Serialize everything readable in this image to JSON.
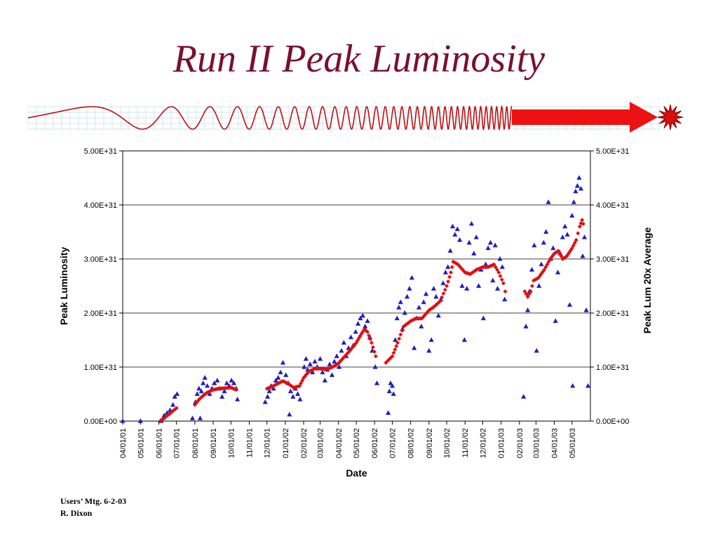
{
  "slide": {
    "title": "Run II Peak Luminosity"
  },
  "footer": {
    "line1": "Users’ Mtg.  6-2-03",
    "line2": "R. Dixon"
  },
  "colors": {
    "title": "#7a1030",
    "peak_series": "#1f1fc0",
    "average_series": "#e01010",
    "banner_wave": "#c01010",
    "banner_arrow": "#ee1111"
  },
  "banner": {
    "decoration": "sine-wave-to-arrow-and-starburst"
  },
  "chart_data": {
    "type": "scatter",
    "xlabel": "Date",
    "ylabel": "Peak Luminosity",
    "y2label": "Peak Lum 20x Average",
    "ylim": [
      0,
      5e+31
    ],
    "yticks": [
      "0.00E+00",
      "1.00E+31",
      "2.00E+31",
      "3.00E+31",
      "4.00E+31",
      "5.00E+31"
    ],
    "y2ticks": [
      "0.00E+00",
      "1.00E+31",
      "2.00E+31",
      "3.00E+31",
      "4.00E+31",
      "5.00E+31"
    ],
    "xlim": [
      "2001-04-01",
      "2003-06-01"
    ],
    "xtick_labels": [
      "04/01/01",
      "05/01/01",
      "06/01/01",
      "07/01/01",
      "08/01/01",
      "09/01/01",
      "10/01/01",
      "11/01/01",
      "12/01/01",
      "01/01/02",
      "02/01/02",
      "03/01/02",
      "04/01/02",
      "05/01/02",
      "06/01/02",
      "07/01/02",
      "08/01/02",
      "09/01/02",
      "10/01/02",
      "11/01/02",
      "12/01/02",
      "01/01/03",
      "02/01/03",
      "03/01/03",
      "04/01/03",
      "05/01/03"
    ],
    "grid": "horizontal",
    "legend": "none",
    "series": [
      {
        "marker": "triangle",
        "axis": "left",
        "points": [
          [
            "2001-04-01",
            0.0
          ],
          [
            "2001-05-01",
            0.0
          ],
          [
            "2001-06-05",
            0.0
          ],
          [
            "2001-06-10",
            0.1
          ],
          [
            "2001-06-15",
            0.15
          ],
          [
            "2001-06-20",
            0.2
          ],
          [
            "2001-06-25",
            0.3
          ],
          [
            "2001-06-28",
            0.45
          ],
          [
            "2001-07-02",
            0.5
          ],
          [
            "2001-07-28",
            0.05
          ],
          [
            "2001-08-02",
            0.35
          ],
          [
            "2001-08-05",
            0.5
          ],
          [
            "2001-08-08",
            0.6
          ],
          [
            "2001-08-12",
            0.55
          ],
          [
            "2001-08-15",
            0.7
          ],
          [
            "2001-08-18",
            0.8
          ],
          [
            "2001-08-22",
            0.65
          ],
          [
            "2001-08-26",
            0.5
          ],
          [
            "2001-08-30",
            0.6
          ],
          [
            "2001-09-03",
            0.7
          ],
          [
            "2001-09-08",
            0.75
          ],
          [
            "2001-09-12",
            0.6
          ],
          [
            "2001-09-16",
            0.45
          ],
          [
            "2001-09-20",
            0.55
          ],
          [
            "2001-09-24",
            0.7
          ],
          [
            "2001-09-28",
            0.65
          ],
          [
            "2001-10-02",
            0.75
          ],
          [
            "2001-10-06",
            0.7
          ],
          [
            "2001-10-10",
            0.6
          ],
          [
            "2001-10-12",
            0.4
          ],
          [
            "2001-08-10",
            0.05
          ],
          [
            "2001-11-28",
            0.35
          ],
          [
            "2001-12-02",
            0.45
          ],
          [
            "2001-12-05",
            0.55
          ],
          [
            "2001-12-08",
            0.65
          ],
          [
            "2001-12-12",
            0.6
          ],
          [
            "2001-12-16",
            0.75
          ],
          [
            "2001-12-20",
            0.8
          ],
          [
            "2001-12-24",
            0.9
          ],
          [
            "2001-12-28",
            1.08
          ],
          [
            "2002-01-02",
            0.85
          ],
          [
            "2002-01-06",
            0.7
          ],
          [
            "2002-01-10",
            0.55
          ],
          [
            "2002-01-14",
            0.45
          ],
          [
            "2002-01-18",
            0.6
          ],
          [
            "2002-01-22",
            0.5
          ],
          [
            "2002-01-26",
            0.4
          ],
          [
            "2002-01-08",
            0.12
          ],
          [
            "2002-02-02",
            1.0
          ],
          [
            "2002-02-05",
            1.15
          ],
          [
            "2002-02-08",
            0.95
          ],
          [
            "2002-02-12",
            1.05
          ],
          [
            "2002-02-16",
            0.9
          ],
          [
            "2002-02-20",
            1.1
          ],
          [
            "2002-02-24",
            1.0
          ],
          [
            "2002-03-01",
            1.15
          ],
          [
            "2002-03-05",
            0.9
          ],
          [
            "2002-03-09",
            0.75
          ],
          [
            "2002-03-13",
            0.95
          ],
          [
            "2002-03-17",
            1.05
          ],
          [
            "2002-03-21",
            0.85
          ],
          [
            "2002-03-25",
            1.1
          ],
          [
            "2002-03-29",
            1.2
          ],
          [
            "2002-04-02",
            1.0
          ],
          [
            "2002-04-06",
            1.3
          ],
          [
            "2002-04-10",
            1.45
          ],
          [
            "2002-04-14",
            1.2
          ],
          [
            "2002-04-18",
            1.35
          ],
          [
            "2002-04-22",
            1.55
          ],
          [
            "2002-04-26",
            1.4
          ],
          [
            "2002-04-30",
            1.65
          ],
          [
            "2002-05-04",
            1.8
          ],
          [
            "2002-05-08",
            1.9
          ],
          [
            "2002-05-12",
            1.95
          ],
          [
            "2002-05-16",
            1.75
          ],
          [
            "2002-05-20",
            1.85
          ],
          [
            "2002-05-24",
            1.55
          ],
          [
            "2002-05-28",
            1.3
          ],
          [
            "2002-06-02",
            1.0
          ],
          [
            "2002-06-05",
            0.7
          ],
          [
            "2002-06-24",
            0.15
          ],
          [
            "2002-06-26",
            0.55
          ],
          [
            "2002-06-28",
            0.7
          ],
          [
            "2002-07-01",
            0.65
          ],
          [
            "2002-07-03",
            0.5
          ],
          [
            "2002-07-06",
            1.5
          ],
          [
            "2002-07-09",
            1.9
          ],
          [
            "2002-07-12",
            2.1
          ],
          [
            "2002-07-15",
            2.2
          ],
          [
            "2002-07-18",
            1.7
          ],
          [
            "2002-07-22",
            2.0
          ],
          [
            "2002-07-26",
            2.3
          ],
          [
            "2002-07-30",
            2.45
          ],
          [
            "2002-08-03",
            2.65
          ],
          [
            "2002-08-07",
            1.35
          ],
          [
            "2002-08-11",
            1.9
          ],
          [
            "2002-08-15",
            2.1
          ],
          [
            "2002-08-19",
            1.75
          ],
          [
            "2002-08-23",
            2.2
          ],
          [
            "2002-08-27",
            2.35
          ],
          [
            "2002-09-01",
            1.3
          ],
          [
            "2002-09-05",
            1.5
          ],
          [
            "2002-09-09",
            2.45
          ],
          [
            "2002-09-13",
            2.3
          ],
          [
            "2002-09-17",
            1.95
          ],
          [
            "2002-09-21",
            2.25
          ],
          [
            "2002-09-25",
            2.55
          ],
          [
            "2002-09-29",
            2.75
          ],
          [
            "2002-10-03",
            2.85
          ],
          [
            "2002-10-07",
            3.15
          ],
          [
            "2002-10-11",
            3.6
          ],
          [
            "2002-10-15",
            3.45
          ],
          [
            "2002-10-19",
            3.55
          ],
          [
            "2002-10-23",
            3.35
          ],
          [
            "2002-10-27",
            2.5
          ],
          [
            "2002-10-31",
            1.5
          ],
          [
            "2002-11-04",
            2.45
          ],
          [
            "2002-11-08",
            3.3
          ],
          [
            "2002-11-12",
            3.65
          ],
          [
            "2002-11-16",
            3.1
          ],
          [
            "2002-11-20",
            3.4
          ],
          [
            "2002-11-24",
            2.5
          ],
          [
            "2002-11-28",
            2.8
          ],
          [
            "2002-12-02",
            1.9
          ],
          [
            "2002-12-06",
            2.9
          ],
          [
            "2002-12-10",
            3.2
          ],
          [
            "2002-12-14",
            3.3
          ],
          [
            "2002-12-18",
            2.6
          ],
          [
            "2002-12-22",
            3.25
          ],
          [
            "2002-12-26",
            2.45
          ],
          [
            "2002-12-30",
            3.0
          ],
          [
            "2003-01-03",
            2.85
          ],
          [
            "2003-01-07",
            2.25
          ],
          [
            "2003-02-08",
            0.45
          ],
          [
            "2003-02-12",
            1.75
          ],
          [
            "2003-02-15",
            2.05
          ],
          [
            "2003-02-18",
            2.4
          ],
          [
            "2003-02-22",
            2.8
          ],
          [
            "2003-02-26",
            3.25
          ],
          [
            "2003-03-02",
            1.3
          ],
          [
            "2003-03-06",
            2.5
          ],
          [
            "2003-03-10",
            2.9
          ],
          [
            "2003-03-14",
            3.3
          ],
          [
            "2003-03-18",
            3.5
          ],
          [
            "2003-03-22",
            4.05
          ],
          [
            "2003-03-26",
            3.0
          ],
          [
            "2003-03-30",
            3.2
          ],
          [
            "2003-04-03",
            1.85
          ],
          [
            "2003-04-07",
            2.75
          ],
          [
            "2003-04-11",
            3.1
          ],
          [
            "2003-04-15",
            3.4
          ],
          [
            "2003-04-19",
            3.6
          ],
          [
            "2003-04-23",
            3.45
          ],
          [
            "2003-04-27",
            2.15
          ],
          [
            "2003-05-01",
            3.8
          ],
          [
            "2003-05-04",
            4.05
          ],
          [
            "2003-05-07",
            4.25
          ],
          [
            "2003-05-10",
            4.35
          ],
          [
            "2003-05-13",
            4.5
          ],
          [
            "2003-05-16",
            4.3
          ],
          [
            "2003-05-19",
            3.05
          ],
          [
            "2003-05-22",
            3.4
          ],
          [
            "2003-05-25",
            2.05
          ],
          [
            "2003-05-28",
            0.65
          ],
          [
            "2003-05-02",
            0.65
          ]
        ]
      },
      {
        "marker": "diamond",
        "axis": "right",
        "points": [
          [
            "2001-06-05",
            0.02
          ],
          [
            "2001-06-10",
            0.05
          ],
          [
            "2001-06-15",
            0.1
          ],
          [
            "2001-06-20",
            0.14
          ],
          [
            "2001-06-25",
            0.19
          ],
          [
            "2001-07-01",
            0.24
          ],
          [
            "2001-08-01",
            0.3
          ],
          [
            "2001-08-08",
            0.4
          ],
          [
            "2001-08-15",
            0.47
          ],
          [
            "2001-08-22",
            0.53
          ],
          [
            "2001-09-01",
            0.58
          ],
          [
            "2001-09-10",
            0.6
          ],
          [
            "2001-09-20",
            0.61
          ],
          [
            "2001-10-01",
            0.62
          ],
          [
            "2001-10-10",
            0.58
          ],
          [
            "2001-12-01",
            0.6
          ],
          [
            "2001-12-10",
            0.64
          ],
          [
            "2001-12-20",
            0.7
          ],
          [
            "2001-12-28",
            0.74
          ],
          [
            "2002-01-05",
            0.7
          ],
          [
            "2002-01-15",
            0.62
          ],
          [
            "2002-01-25",
            0.65
          ],
          [
            "2002-02-01",
            0.8
          ],
          [
            "2002-02-10",
            0.92
          ],
          [
            "2002-02-20",
            0.97
          ],
          [
            "2002-03-01",
            0.97
          ],
          [
            "2002-03-10",
            0.96
          ],
          [
            "2002-03-20",
            0.99
          ],
          [
            "2002-04-01",
            1.07
          ],
          [
            "2002-04-10",
            1.18
          ],
          [
            "2002-04-20",
            1.3
          ],
          [
            "2002-05-01",
            1.45
          ],
          [
            "2002-05-10",
            1.62
          ],
          [
            "2002-05-15",
            1.7
          ],
          [
            "2002-05-20",
            1.65
          ],
          [
            "2002-05-27",
            1.45
          ],
          [
            "2002-06-03",
            1.2
          ],
          [
            "2002-06-20",
            1.08
          ],
          [
            "2002-07-01",
            1.2
          ],
          [
            "2002-07-10",
            1.45
          ],
          [
            "2002-07-20",
            1.75
          ],
          [
            "2002-08-01",
            1.85
          ],
          [
            "2002-08-10",
            1.9
          ],
          [
            "2002-08-20",
            1.9
          ],
          [
            "2002-09-01",
            2.05
          ],
          [
            "2002-09-10",
            2.12
          ],
          [
            "2002-09-20",
            2.22
          ],
          [
            "2002-10-01",
            2.5
          ],
          [
            "2002-10-08",
            2.75
          ],
          [
            "2002-10-12",
            2.95
          ],
          [
            "2002-10-20",
            2.9
          ],
          [
            "2002-11-01",
            2.75
          ],
          [
            "2002-11-10",
            2.72
          ],
          [
            "2002-11-20",
            2.8
          ],
          [
            "2002-12-01",
            2.85
          ],
          [
            "2002-12-10",
            2.85
          ],
          [
            "2002-12-20",
            2.9
          ],
          [
            "2002-12-28",
            2.75
          ],
          [
            "2003-01-05",
            2.55
          ],
          [
            "2003-01-08",
            2.4
          ],
          [
            "2003-02-10",
            2.4
          ],
          [
            "2003-02-15",
            2.3
          ],
          [
            "2003-02-20",
            2.4
          ],
          [
            "2003-02-25",
            2.6
          ],
          [
            "2003-03-05",
            2.65
          ],
          [
            "2003-03-15",
            2.8
          ],
          [
            "2003-03-25",
            3.0
          ],
          [
            "2003-04-01",
            3.1
          ],
          [
            "2003-04-08",
            3.15
          ],
          [
            "2003-04-15",
            3.0
          ],
          [
            "2003-04-22",
            3.05
          ],
          [
            "2003-05-01",
            3.2
          ],
          [
            "2003-05-08",
            3.35
          ],
          [
            "2003-05-14",
            3.6
          ],
          [
            "2003-05-18",
            3.72
          ],
          [
            "2003-05-20",
            3.65
          ]
        ]
      }
    ],
    "y_units_scale": 1e+31
  }
}
